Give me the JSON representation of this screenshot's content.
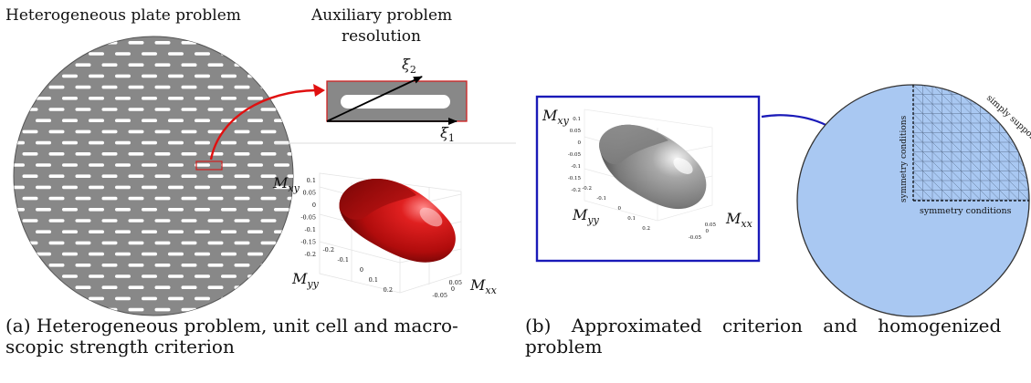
{
  "panel_a": {
    "heading_left": "Heterogeneous plate problem",
    "heading_right_line1": "Auxiliary problem",
    "heading_right_line2": "resolution",
    "cell_axis_1": "ξ",
    "cell_axis_1_sub": "1",
    "cell_axis_2": "ξ",
    "cell_axis_2_sub": "2",
    "surface_axis_xy": "M",
    "surface_axis_xy_sub": "xy",
    "surface_axis_yy": "M",
    "surface_axis_yy_sub": "yy",
    "surface_axis_xx": "M",
    "surface_axis_xx_sub": "xx",
    "vertical_ticks": [
      "0.1",
      "0.05",
      "0",
      "-0.05",
      "-0.1",
      "-0.15",
      "-0.2"
    ],
    "myy_ticks": [
      "-0.2",
      "-0.1",
      "0",
      "0.1",
      "0.2"
    ],
    "mxx_ticks": [
      "0.05",
      "0",
      "-0.05"
    ],
    "surface_color": "#c01010",
    "caption_line1": "(a) Heterogeneous problem, unit cell and macro-",
    "caption_line2": "scopic strength criterion"
  },
  "panel_b": {
    "surface_axis_xy": "M",
    "surface_axis_xy_sub": "xy",
    "surface_axis_yy": "M",
    "surface_axis_yy_sub": "yy",
    "surface_axis_xx": "M",
    "surface_axis_xx_sub": "xx",
    "vertical_ticks": [
      "0.1",
      "0.05",
      "0",
      "-0.05",
      "-0.1",
      "-0.15",
      "-0.2"
    ],
    "myy_ticks": [
      "-0.2",
      "-0.1",
      "0",
      "0.1",
      "0.2"
    ],
    "mxx_ticks": [
      "0.05",
      "0",
      "-0.05"
    ],
    "surface_color": "#8a8a8a",
    "frame_color": "#1a1ab8",
    "mesh_label_vertical": "symmetry conditions",
    "mesh_label_horizontal": "symmetry conditions",
    "mesh_label_arc": "simply supported",
    "disk_color": "#a9c8f2",
    "caption_line1": "(b) Approximated criterion and homogenized",
    "caption_line2": "problem"
  }
}
